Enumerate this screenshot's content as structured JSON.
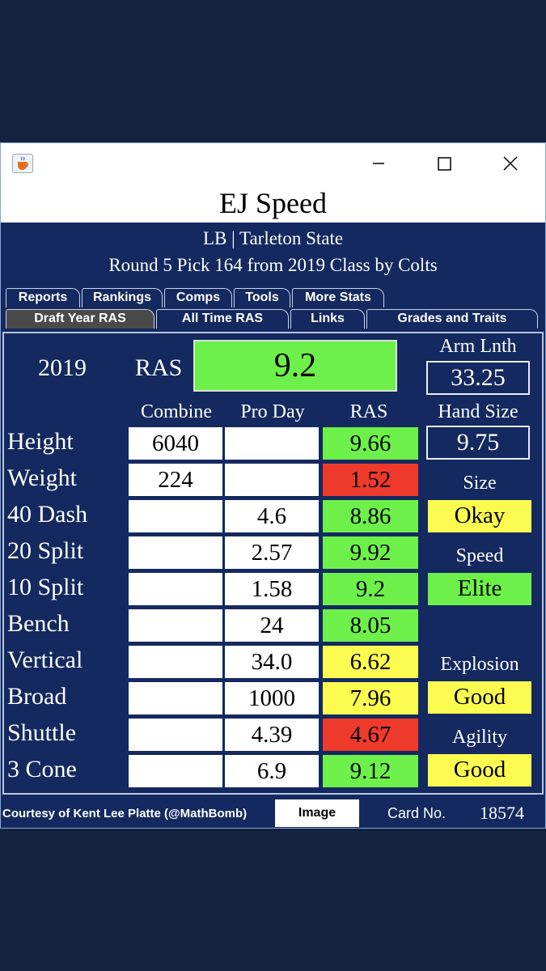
{
  "window": {
    "app_icon": "java-cup-icon",
    "controls": [
      "minimize-icon",
      "maximize-icon",
      "close-icon"
    ]
  },
  "player": {
    "name": "EJ Speed",
    "position_school": "LB | Tarleton State",
    "draft_info": "Round 5 Pick 164 from 2019 Class by Colts"
  },
  "tabs_row1": [
    "Reports",
    "Rankings",
    "Comps",
    "Tools",
    "More Stats"
  ],
  "tabs_row2": [
    "Draft Year RAS",
    "All Time RAS",
    "Links",
    "Grades and Traits"
  ],
  "active_tab": "Draft Year RAS",
  "summary": {
    "year": "2019",
    "ras_label": "RAS",
    "ras_value": "9.2",
    "arm_length_label": "Arm Lnth",
    "arm_length_value": "33.25",
    "hand_size_label": "Hand Size",
    "hand_size_value": "9.75"
  },
  "columns": {
    "combine": "Combine",
    "pro_day": "Pro Day",
    "ras": "RAS"
  },
  "rows": [
    {
      "label": "Height",
      "combine": "6040",
      "pro_day": "",
      "ras": "9.66",
      "color": "green"
    },
    {
      "label": "Weight",
      "combine": "224",
      "pro_day": "",
      "ras": "1.52",
      "color": "red"
    },
    {
      "label": "40 Dash",
      "combine": "",
      "pro_day": "4.6",
      "ras": "8.86",
      "color": "green"
    },
    {
      "label": "20 Split",
      "combine": "",
      "pro_day": "2.57",
      "ras": "9.92",
      "color": "green"
    },
    {
      "label": "10 Split",
      "combine": "",
      "pro_day": "1.58",
      "ras": "9.2",
      "color": "green"
    },
    {
      "label": "Bench",
      "combine": "",
      "pro_day": "24",
      "ras": "8.05",
      "color": "green"
    },
    {
      "label": "Vertical",
      "combine": "",
      "pro_day": "34.0",
      "ras": "6.62",
      "color": "yellow"
    },
    {
      "label": "Broad",
      "combine": "",
      "pro_day": "1000",
      "ras": "7.96",
      "color": "yellow"
    },
    {
      "label": "Shuttle",
      "combine": "",
      "pro_day": "4.39",
      "ras": "4.67",
      "color": "red"
    },
    {
      "label": "3 Cone",
      "combine": "",
      "pro_day": "6.9",
      "ras": "9.12",
      "color": "green"
    }
  ],
  "grades": {
    "size_label": "Size",
    "size_value": "Okay",
    "speed_label": "Speed",
    "speed_value": "Elite",
    "explosion_label": "Explosion",
    "explosion_value": "Good",
    "agility_label": "Agility",
    "agility_value": "Good"
  },
  "colors": {
    "green": "#6ef04a",
    "red": "#ee3a2a",
    "yellow": "#fcfc50",
    "panel_bg": "#13295f"
  },
  "footer": {
    "credit": "Courtesy of Kent Lee Platte (@MathBomb)",
    "image_button": "Image",
    "card_label": "Card No.",
    "card_number": "18574"
  }
}
